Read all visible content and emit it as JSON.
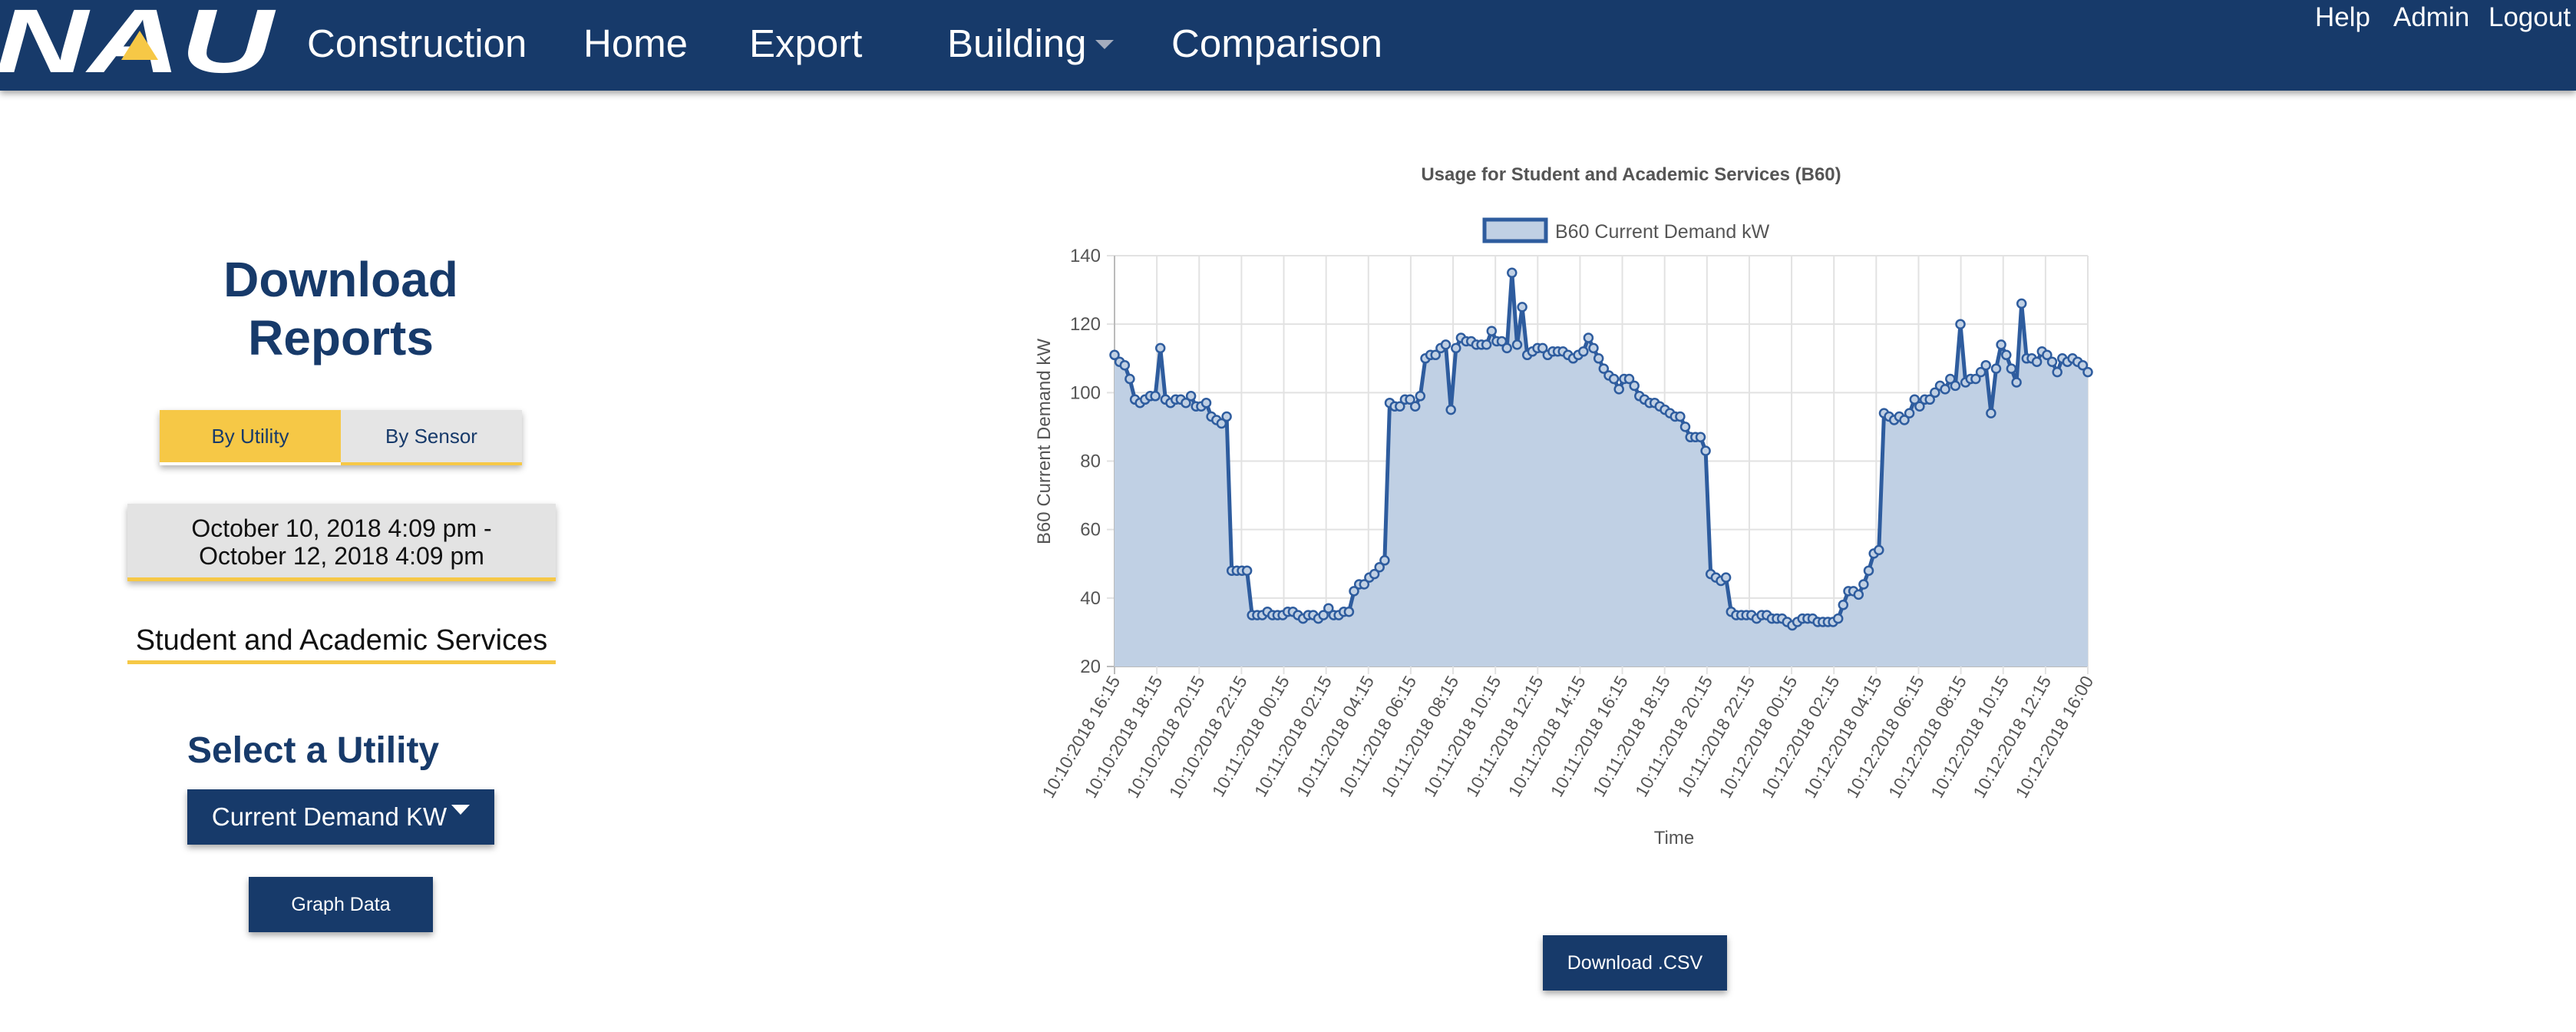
{
  "nav": {
    "logo_text": "NAU",
    "links": [
      "Construction",
      "Home",
      "Export",
      "Building",
      "Comparison"
    ],
    "utility_links": [
      "Help",
      "Admin",
      "Logout"
    ],
    "brand_color": "#173a6a",
    "accent_color": "#f6c846"
  },
  "left_panel": {
    "title_line1": "Download",
    "title_line2": "Reports",
    "toggle": {
      "active": "By Utility",
      "inactive": "By Sensor"
    },
    "date_range_line1": "October 10, 2018 4:09 pm -",
    "date_range_line2": "October 12, 2018 4:09 pm",
    "building_name": "Student and Academic Services",
    "select_title": "Select a Utility",
    "utility_selected": "Current Demand KW",
    "graph_button": "Graph Data"
  },
  "download_button": "Download .CSV",
  "chart_data": {
    "type": "area",
    "title": "Usage for Student and Academic Services (B60)",
    "xlabel": "Time",
    "ylabel": "B60 Current Demand kW",
    "ylim": [
      20,
      140
    ],
    "yticks": [
      20,
      40,
      60,
      80,
      100,
      120,
      140
    ],
    "grid": true,
    "legend_position": "top-center",
    "tick_labels": [
      "10:10:2018 16:15",
      "10:10:2018 18:15",
      "10:10:2018 20:15",
      "10:10:2018 22:15",
      "10:11:2018 00:15",
      "10:11:2018 02:15",
      "10:11:2018 04:15",
      "10:11:2018 06:15",
      "10:11:2018 08:15",
      "10:11:2018 10:15",
      "10:11:2018 12:15",
      "10:11:2018 14:15",
      "10:11:2018 16:15",
      "10:11:2018 18:15",
      "10:11:2018 20:15",
      "10:11:2018 22:15",
      "10:12:2018 00:15",
      "10:12:2018 02:15",
      "10:12:2018 04:15",
      "10:12:2018 06:15",
      "10:12:2018 08:15",
      "10:12:2018 10:15",
      "10:12:2018 12:15",
      "10:12:2018 16:00"
    ],
    "series": [
      {
        "name": "B60 Current Demand kW",
        "line_color": "#2e5c9e",
        "fill_color": "#c0d0e4",
        "values": [
          111,
          109,
          108,
          104,
          98,
          97,
          98,
          99,
          99,
          113,
          98,
          97,
          98,
          98,
          97,
          99,
          96,
          96,
          97,
          93,
          92,
          91,
          93,
          48,
          48,
          48,
          48,
          35,
          35,
          35,
          36,
          35,
          35,
          35,
          36,
          36,
          35,
          34,
          35,
          35,
          34,
          35,
          37,
          35,
          35,
          36,
          36,
          42,
          44,
          44,
          46,
          47,
          49,
          51,
          97,
          96,
          96,
          98,
          98,
          96,
          99,
          110,
          111,
          111,
          113,
          114,
          95,
          113,
          116,
          115,
          115,
          114,
          114,
          114,
          118,
          115,
          115,
          113,
          135,
          114,
          125,
          111,
          112,
          113,
          113,
          111,
          112,
          112,
          112,
          111,
          110,
          111,
          112,
          116,
          113,
          110,
          107,
          105,
          104,
          101,
          104,
          104,
          102,
          99,
          98,
          97,
          97,
          96,
          95,
          94,
          93,
          93,
          90,
          87,
          87,
          87,
          83,
          47,
          46,
          45,
          46,
          36,
          35,
          35,
          35,
          35,
          34,
          35,
          35,
          34,
          34,
          34,
          33,
          32,
          33,
          34,
          34,
          34,
          33,
          33,
          33,
          33,
          34,
          38,
          42,
          42,
          41,
          44,
          48,
          53,
          54,
          94,
          93,
          92,
          93,
          92,
          94,
          98,
          96,
          98,
          98,
          100,
          102,
          101,
          104,
          102,
          120,
          103,
          104,
          104,
          106,
          108,
          94,
          107,
          114,
          111,
          107,
          103,
          126,
          110,
          110,
          109,
          112,
          111,
          109,
          106,
          110,
          109,
          110,
          109,
          108,
          106
        ]
      }
    ]
  }
}
